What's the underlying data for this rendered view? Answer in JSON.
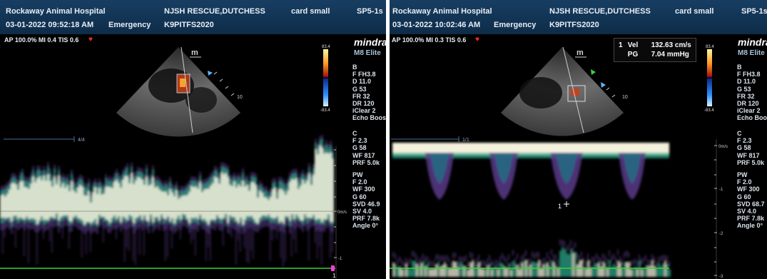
{
  "left": {
    "hospital": "Rockaway Animal Hospital",
    "patient": "NJSH RESCUE,DUTCHESS",
    "probe": "card small",
    "probe_id": "SP5-1s",
    "datetime": "03-01-2022 09:52:18 AM",
    "exam": "Emergency",
    "patient_id": "K9PITFS2020",
    "power_line": "AP 100.0%  MI 0.4  TIS 0.6",
    "vendor": "mindray",
    "model": "M8 Elite",
    "scale_top": "83.4",
    "scale_bottom": "-83.4",
    "sector_mode": "m",
    "depth_mark": "10",
    "scale_ratio": "4/4",
    "zero_label": "0m/s",
    "axis_label_1": "-1",
    "param_b": [
      "B",
      "F FH3.8",
      "D 11.0",
      "G 53",
      "FR 32",
      "DR 120",
      "iClear 2",
      "Echo Boost"
    ],
    "param_c": [
      "C",
      "F 2.3",
      "G 58",
      "WF 817",
      "PRF 5.0k"
    ],
    "param_pw": [
      "PW",
      "F 2.0",
      "WF 300",
      "G 60",
      "SVD 46.9",
      "SV 4.0",
      "PRF 7.8k",
      "Angle 0°"
    ],
    "marker_1": "1"
  },
  "right": {
    "hospital": "Rockaway Animal Hospital",
    "patient": "NJSH RESCUE,DUTCHESS",
    "probe": "card small",
    "probe_id": "SP5-1s",
    "datetime": "03-01-2022 10:02:46 AM",
    "exam": "Emergency",
    "patient_id": "K9PITFS2020",
    "power_line": "AP 100.0%  MI 0.3  TIS 0.6",
    "vendor": "mindray",
    "model": "M8 Elite",
    "scale_top": "83.4",
    "scale_bottom": "-83.4",
    "sector_mode": "m",
    "depth_mark": "10",
    "scale_ratio": "1/1",
    "zero_label": "0m/s",
    "axis_label_1": "-1",
    "axis_label_2": "-2",
    "axis_label_3": "-3",
    "measurement": {
      "index": "1",
      "vel_label": "Vel",
      "vel_value": "132.63 cm/s",
      "pg_label": "PG",
      "pg_value": "7.04 mmHg"
    },
    "cursor_label": "1",
    "param_b": [
      "B",
      "F FH3.8",
      "D 11.0",
      "G 53",
      "FR 32",
      "DR 120",
      "iClear 2",
      "Echo Boost"
    ],
    "param_c": [
      "C",
      "F 2.3",
      "G 58",
      "WF 817",
      "PRF 5.0k"
    ],
    "param_pw": [
      "PW",
      "F 2.0",
      "WF 300",
      "G 60",
      "SVD 68.7",
      "SV 4.0",
      "PRF 7.8k",
      "Angle 0°"
    ]
  },
  "colors": {
    "header_bg": "#173e62",
    "doppler_core": "#f4f1dc",
    "doppler_halo": "#2aa58a",
    "doppler_edge": "#5a3b8a",
    "baseline_green": "#3bd23b",
    "heart_red": "#ff2b2b"
  },
  "icons": [
    "heart-icon",
    "color-scale-bar",
    "sector-image",
    "cursor-crosshair-icon"
  ]
}
